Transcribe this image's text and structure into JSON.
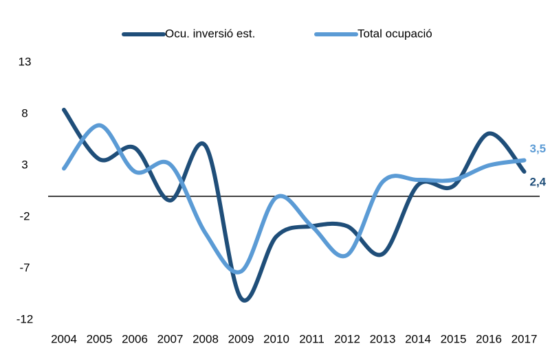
{
  "chart_data": {
    "type": "line",
    "categories": [
      "2004",
      "2005",
      "2006",
      "2007",
      "2008",
      "2009",
      "2010",
      "2011",
      "2012",
      "2013",
      "2014",
      "2015",
      "2016",
      "2017"
    ],
    "series": [
      {
        "name": "Ocu. inversió est.",
        "color": "#1f4e79",
        "values": [
          8.4,
          3.6,
          4.7,
          -0.4,
          4.9,
          -9.9,
          -3.9,
          -2.9,
          -2.9,
          -5.6,
          1.1,
          1.0,
          6.1,
          2.4
        ],
        "value_labels": [
          null,
          null,
          null,
          null,
          null,
          null,
          null,
          null,
          null,
          null,
          null,
          null,
          null,
          "2,4"
        ]
      },
      {
        "name": "Total ocupació",
        "color": "#5b9bd5",
        "values": [
          2.7,
          6.9,
          2.4,
          3.1,
          -3.6,
          -7.3,
          -0.1,
          -2.9,
          -5.7,
          1.4,
          1.6,
          1.6,
          3.0,
          3.5
        ],
        "value_labels": [
          null,
          null,
          null,
          null,
          null,
          null,
          null,
          null,
          null,
          null,
          null,
          null,
          null,
          "3,5"
        ]
      }
    ],
    "ylim": [
      -12,
      13
    ],
    "yticks": [
      13,
      8,
      3,
      -2,
      -7,
      -12
    ],
    "legend": "top"
  }
}
